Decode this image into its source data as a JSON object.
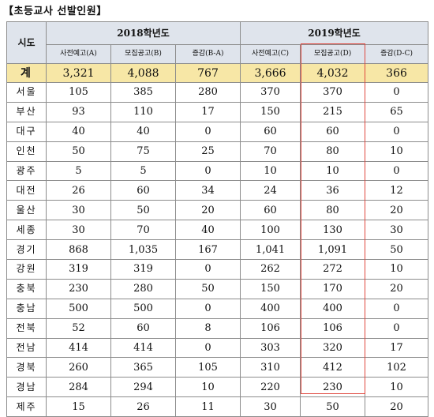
{
  "title": "【초등교사 선발인원】",
  "header": {
    "region_label": "시도",
    "year_2018": "2018학년도",
    "year_2019": "2019학년도",
    "sub_2018": [
      "사전예고(A)",
      "모집공고(B)",
      "증감(B-A)"
    ],
    "sub_2019": [
      "사전예고(C)",
      "모집공고(D)",
      "증감(D-C)"
    ]
  },
  "total": {
    "region": "계",
    "values": [
      "3,321",
      "4,088",
      "767",
      "3,666",
      "4,032",
      "366"
    ]
  },
  "rows": [
    {
      "region": "서울",
      "values": [
        "105",
        "385",
        "280",
        "370",
        "370",
        "0"
      ]
    },
    {
      "region": "부산",
      "values": [
        "93",
        "110",
        "17",
        "150",
        "215",
        "65"
      ]
    },
    {
      "region": "대구",
      "values": [
        "40",
        "40",
        "0",
        "60",
        "60",
        "0"
      ]
    },
    {
      "region": "인천",
      "values": [
        "50",
        "75",
        "25",
        "70",
        "80",
        "10"
      ]
    },
    {
      "region": "광주",
      "values": [
        "5",
        "5",
        "0",
        "10",
        "10",
        "0"
      ]
    },
    {
      "region": "대전",
      "values": [
        "26",
        "60",
        "34",
        "24",
        "36",
        "12"
      ]
    },
    {
      "region": "울산",
      "values": [
        "30",
        "50",
        "20",
        "60",
        "80",
        "20"
      ]
    },
    {
      "region": "세종",
      "values": [
        "30",
        "70",
        "40",
        "100",
        "130",
        "30"
      ]
    },
    {
      "region": "경기",
      "values": [
        "868",
        "1,035",
        "167",
        "1,041",
        "1,091",
        "50"
      ]
    },
    {
      "region": "강원",
      "values": [
        "319",
        "319",
        "0",
        "262",
        "272",
        "10"
      ]
    },
    {
      "region": "충북",
      "values": [
        "230",
        "280",
        "50",
        "150",
        "170",
        "20"
      ]
    },
    {
      "region": "충남",
      "values": [
        "500",
        "500",
        "0",
        "400",
        "400",
        "0"
      ]
    },
    {
      "region": "전북",
      "values": [
        "52",
        "60",
        "8",
        "106",
        "106",
        "0"
      ]
    },
    {
      "region": "전남",
      "values": [
        "414",
        "414",
        "0",
        "303",
        "320",
        "17"
      ]
    },
    {
      "region": "경북",
      "values": [
        "260",
        "365",
        "105",
        "310",
        "412",
        "102"
      ]
    },
    {
      "region": "경남",
      "values": [
        "284",
        "294",
        "10",
        "220",
        "230",
        "10"
      ]
    },
    {
      "region": "제주",
      "values": [
        "15",
        "26",
        "11",
        "30",
        "50",
        "20"
      ]
    }
  ],
  "colors": {
    "header_bg": "#dfe4ec",
    "total_bg": "#f7e7a6",
    "highlight_border": "#e0473e",
    "grid": "#8c8c8c"
  }
}
